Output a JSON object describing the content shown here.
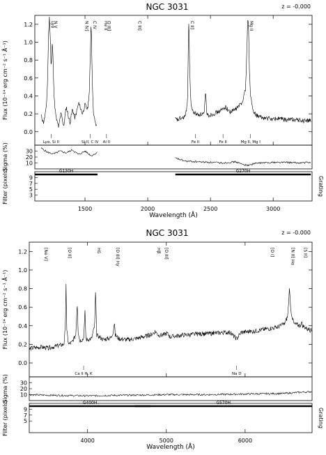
{
  "chart_data": [
    {
      "type": "line",
      "title": "NGC 3031",
      "z_label": "z = -0.000",
      "flux_ylabel": "Flux (10⁻¹⁴ erg cm⁻² s⁻¹ Å⁻¹)",
      "sigma_ylabel": "Sigma (%)",
      "filter_ylabel": "Filter (pixels)",
      "grating_label": "Grating",
      "xlabel": "Wavelength (Å)",
      "xlim": [
        1100,
        3310
      ],
      "flux_ylim": [
        -0.15,
        1.3
      ],
      "flux_yticks": [
        0.0,
        0.2,
        0.4,
        0.6,
        0.8,
        1.0,
        1.2
      ],
      "xticks": [
        1500,
        2000,
        2500,
        3000
      ],
      "sigma_yticks": [
        10,
        20,
        30
      ],
      "filter_yticks": [
        3,
        5,
        7,
        9
      ],
      "emission_labels": [
        {
          "text": "Lyα",
          "x": 1216
        },
        {
          "text": "N V",
          "x": 1240
        },
        {
          "text": "N IV]",
          "x": 1486
        },
        {
          "text": "C IV",
          "x": 1549
        },
        {
          "text": "He II",
          "x": 1640
        },
        {
          "text": "O III]",
          "x": 1664
        },
        {
          "text": "C III]",
          "x": 1909
        },
        {
          "text": "C II]",
          "x": 2326
        },
        {
          "text": "Mg II",
          "x": 2800
        }
      ],
      "absorption_labels": [
        {
          "text": "Lyα, Si II",
          "x": 1230
        },
        {
          "text": "Si II, C IV",
          "x": 1540
        },
        {
          "text": "Al II",
          "x": 1671
        },
        {
          "text": "Fe II",
          "x": 2380
        },
        {
          "text": "Fe II",
          "x": 2600
        },
        {
          "text": "Mg II, Mg I",
          "x": 2820
        }
      ],
      "gratings": [
        {
          "name": "G130H",
          "x_range": [
            1100,
            1600
          ]
        },
        {
          "name": "G270H",
          "x_range": [
            2220,
            3300
          ]
        }
      ],
      "series": [
        {
          "segment": 1,
          "x": [
            1150,
            1170,
            1190,
            1200,
            1210,
            1216,
            1222,
            1230,
            1240,
            1245,
            1255,
            1270,
            1290,
            1310,
            1330,
            1350,
            1380,
            1400,
            1420,
            1450,
            1480,
            1500,
            1520,
            1535,
            1542,
            1549,
            1556,
            1565,
            1580,
            1595
          ],
          "y": [
            0.18,
            0.1,
            0.25,
            0.5,
            1.1,
            1.28,
            1.1,
            0.7,
            1.02,
            0.8,
            0.35,
            0.15,
            0.05,
            0.22,
            0.05,
            0.28,
            0.1,
            0.25,
            0.15,
            0.32,
            0.2,
            0.3,
            0.25,
            0.45,
            0.85,
            1.26,
            0.7,
            0.25,
            0.1,
            0.05
          ]
        },
        {
          "segment": 2,
          "x": [
            2220,
            2240,
            2260,
            2280,
            2300,
            2310,
            2318,
            2322,
            2326,
            2330,
            2334,
            2345,
            2360,
            2400,
            2450,
            2462,
            2470,
            2480,
            2520,
            2560,
            2600,
            2620,
            2640,
            2660,
            2700,
            2750,
            2780,
            2790,
            2797,
            2803,
            2810,
            2820,
            2840,
            2870,
            2900,
            2950,
            3000,
            3050,
            3100,
            3150,
            3200,
            3250,
            3300
          ],
          "y": [
            0.14,
            0.13,
            0.15,
            0.15,
            0.18,
            0.24,
            0.4,
            0.8,
            1.26,
            1.12,
            0.7,
            0.3,
            0.22,
            0.19,
            0.2,
            0.45,
            0.22,
            0.18,
            0.2,
            0.22,
            0.25,
            0.28,
            0.24,
            0.22,
            0.25,
            0.32,
            0.48,
            0.9,
            1.26,
            1.2,
            0.7,
            0.4,
            0.22,
            0.18,
            0.16,
            0.15,
            0.14,
            0.15,
            0.13,
            0.14,
            0.13,
            0.12,
            0.13
          ]
        }
      ],
      "sigma": [
        {
          "x": [
            1150,
            1200,
            1250,
            1300,
            1350,
            1400,
            1450,
            1500,
            1550,
            1600
          ],
          "y": [
            35,
            28,
            25,
            30,
            27,
            32,
            24,
            30,
            22,
            28
          ]
        },
        {
          "x": [
            2220,
            2300,
            2400,
            2500,
            2600,
            2700,
            2750,
            2800,
            2850,
            2900,
            3000,
            3100,
            3200,
            3300
          ],
          "y": [
            18,
            13,
            12,
            11,
            10,
            12,
            8,
            6,
            9,
            10,
            11,
            11,
            10,
            11
          ]
        }
      ]
    },
    {
      "type": "line",
      "title": "NGC 3031",
      "z_label": "z = -0.000",
      "flux_ylabel": "Flux (10⁻¹⁴ erg cm⁻² s⁻¹ Å⁻¹)",
      "sigma_ylabel": "Sigma (%)",
      "filter_ylabel": "Filter (pixels)",
      "grating_label": "Grating",
      "xlabel": "Wavelength (Å)",
      "xlim": [
        3260,
        6850
      ],
      "flux_ylim": [
        -0.15,
        1.3
      ],
      "flux_yticks": [
        0.0,
        0.2,
        0.4,
        0.6,
        0.8,
        1.0,
        1.2
      ],
      "xticks": [
        4000,
        5000,
        6000
      ],
      "sigma_yticks": [
        10,
        20,
        30
      ],
      "filter_yticks": [
        5,
        7,
        9
      ],
      "emission_labels": [
        {
          "text": "[Ne V]",
          "x": 3426
        },
        {
          "text": "[O II]",
          "x": 3727
        },
        {
          "text": "Hδ",
          "x": 4102
        },
        {
          "text": "[O III] Hγ",
          "x": 4340
        },
        {
          "text": "Hβ",
          "x": 4861
        },
        {
          "text": "[O III]",
          "x": 4959
        },
        {
          "text": "[O I]",
          "x": 6300
        },
        {
          "text": "[N II] Hα",
          "x": 6563
        },
        {
          "text": "[S II]",
          "x": 6720
        }
      ],
      "absorption_labels": [
        {
          "text": "Ca II H, K",
          "x": 3950
        },
        {
          "text": "Na D",
          "x": 5893
        }
      ],
      "gratings": [
        {
          "name": "G400H",
          "x_range": [
            3260,
            4800
          ]
        },
        {
          "name": "G570H",
          "x_range": [
            4600,
            6850
          ]
        }
      ],
      "series": [
        {
          "segment": 1,
          "x": [
            3260,
            3300,
            3400,
            3500,
            3600,
            3700,
            3720,
            3727,
            3735,
            3760,
            3800,
            3850,
            3869,
            3880,
            3900,
            3950,
            3968,
            3980,
            4050,
            4090,
            4102,
            4115,
            4200,
            4300,
            4330,
            4340,
            4350,
            4400,
            4500,
            4600,
            4700,
            4800,
            4861,
            4900,
            4959,
            5007,
            5050,
            5200,
            5400,
            5600,
            5800,
            5893,
            5950,
            6100,
            6300,
            6400,
            6500,
            6540,
            6563,
            6583,
            6620,
            6700,
            6716,
            6731,
            6800,
            6850
          ],
          "y": [
            0.15,
            0.16,
            0.17,
            0.16,
            0.18,
            0.2,
            0.4,
            0.88,
            0.35,
            0.2,
            0.22,
            0.3,
            0.66,
            0.35,
            0.24,
            0.26,
            0.55,
            0.25,
            0.26,
            0.4,
            0.78,
            0.3,
            0.25,
            0.27,
            0.35,
            0.45,
            0.3,
            0.26,
            0.25,
            0.26,
            0.28,
            0.3,
            0.34,
            0.3,
            0.3,
            0.32,
            0.28,
            0.3,
            0.31,
            0.32,
            0.33,
            0.26,
            0.33,
            0.34,
            0.37,
            0.38,
            0.42,
            0.5,
            0.78,
            0.55,
            0.42,
            0.4,
            0.44,
            0.4,
            0.36,
            0.35
          ]
        }
      ],
      "sigma": [
        {
          "x": [
            3260,
            3500,
            4000,
            4500,
            5000,
            5500,
            6000,
            6500,
            6700,
            6850
          ],
          "y": [
            10,
            9,
            8,
            9,
            10,
            10,
            11,
            12,
            14,
            15
          ]
        }
      ]
    }
  ]
}
